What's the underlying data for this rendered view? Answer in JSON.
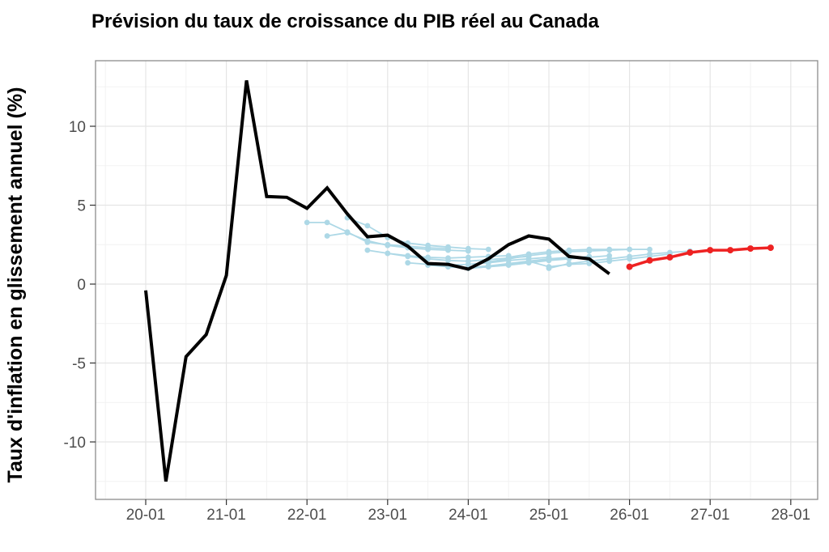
{
  "chart_data": {
    "type": "line",
    "title": "Prévision du taux de croissance du PIB réel au Canada",
    "ylabel": "Taux d'inflation en glissement annuel (%)",
    "xlabel": "",
    "x_tick_labels": [
      "20-01",
      "21-01",
      "22-01",
      "23-01",
      "24-01",
      "25-01",
      "26-01",
      "27-01",
      "28-01"
    ],
    "y_tick_labels": [
      "-10",
      "-5",
      "0",
      "5",
      "10"
    ],
    "y_ticks": [
      -10,
      -5,
      0,
      5,
      10
    ],
    "y_minor_ticks": [
      -12.5,
      -7.5,
      -2.5,
      2.5,
      7.5,
      12.5
    ],
    "ylim": [
      -13.7,
      14.2
    ],
    "xlim_years": [
      2019.38,
      2028.33
    ],
    "grid": true,
    "legend_position": "none",
    "colors": {
      "actual": "#000000",
      "past_forecast": "#ADD8E6",
      "current_forecast": "#EE2222",
      "grid_major": "#e5e5e5",
      "grid_minor": "#f2f2f2",
      "panel_border": "#8c8c8c",
      "tick_text": "#4d4d4d"
    },
    "series": [
      {
        "name": "forecast-22-01",
        "role": "past-forecast",
        "start": "22-01",
        "values": [
          3.9,
          3.9,
          3.3,
          2.65,
          2.5,
          2.4,
          2.3,
          2.25
        ]
      },
      {
        "name": "forecast-22-04",
        "role": "past-forecast",
        "start": "22-04",
        "values": [
          3.05,
          3.25,
          2.75,
          2.45,
          2.3,
          2.2,
          2.15,
          2.1
        ]
      },
      {
        "name": "forecast-22-07",
        "role": "past-forecast",
        "start": "22-07",
        "values": [
          4.2,
          3.7,
          2.95,
          2.6,
          2.45,
          2.35,
          2.25,
          2.2
        ]
      },
      {
        "name": "forecast-22-10",
        "role": "past-forecast",
        "start": "22-10",
        "values": [
          2.15,
          1.95,
          1.8,
          1.7,
          1.65,
          1.7,
          1.75,
          1.8
        ]
      },
      {
        "name": "forecast-23-01",
        "role": "past-forecast",
        "start": "23-01",
        "values": [
          1.95,
          1.75,
          1.6,
          1.5,
          1.45,
          1.55,
          1.65,
          1.75
        ]
      },
      {
        "name": "forecast-23-04",
        "role": "past-forecast",
        "start": "23-04",
        "values": [
          1.35,
          1.25,
          1.2,
          1.25,
          1.35,
          1.5,
          1.6,
          1.7
        ]
      },
      {
        "name": "forecast-23-07",
        "role": "past-forecast",
        "start": "23-07",
        "values": [
          1.2,
          1.1,
          1.05,
          1.15,
          1.3,
          1.45,
          1.6,
          1.7
        ]
      },
      {
        "name": "forecast-23-10",
        "role": "past-forecast",
        "start": "23-10",
        "values": [
          1.1,
          1.0,
          1.1,
          1.25,
          1.4,
          1.55,
          1.65,
          1.75
        ]
      },
      {
        "name": "forecast-24-01",
        "role": "past-forecast",
        "start": "24-01",
        "values": [
          1.0,
          1.1,
          1.2,
          1.35,
          1.5,
          1.6,
          1.7,
          1.8
        ]
      },
      {
        "name": "forecast-24-04",
        "role": "past-forecast",
        "start": "24-04",
        "values": [
          1.4,
          1.6,
          1.8,
          1.95,
          2.05,
          2.1,
          2.15,
          2.2
        ]
      },
      {
        "name": "forecast-24-07",
        "role": "past-forecast",
        "start": "24-07",
        "values": [
          1.7,
          1.9,
          2.05,
          2.15,
          2.2,
          2.2,
          2.2,
          2.2
        ]
      },
      {
        "name": "forecast-24-10",
        "role": "past-forecast",
        "start": "24-10",
        "values": [
          1.45,
          1.1,
          1.25,
          1.3,
          1.45,
          1.6,
          1.75,
          1.9
        ]
      },
      {
        "name": "forecast-25-01",
        "role": "past-forecast",
        "start": "25-01",
        "values": [
          1.0,
          1.3,
          1.45,
          1.6,
          1.75,
          1.9,
          2.0,
          2.1
        ]
      },
      {
        "name": "actual",
        "role": "actual",
        "start": "20-01",
        "values": [
          -0.4,
          -12.5,
          -4.6,
          -3.2,
          0.55,
          12.9,
          5.55,
          5.5,
          4.8,
          6.1,
          4.45,
          3.0,
          3.1,
          2.4,
          1.3,
          1.25,
          0.95,
          1.6,
          2.5,
          3.05,
          2.85,
          1.75,
          1.6,
          0.65
        ]
      },
      {
        "name": "current-forecast",
        "role": "current-forecast",
        "start": "26-01",
        "values": [
          1.1,
          1.5,
          1.7,
          2.0,
          2.15,
          2.15,
          2.25,
          2.3
        ]
      }
    ]
  }
}
